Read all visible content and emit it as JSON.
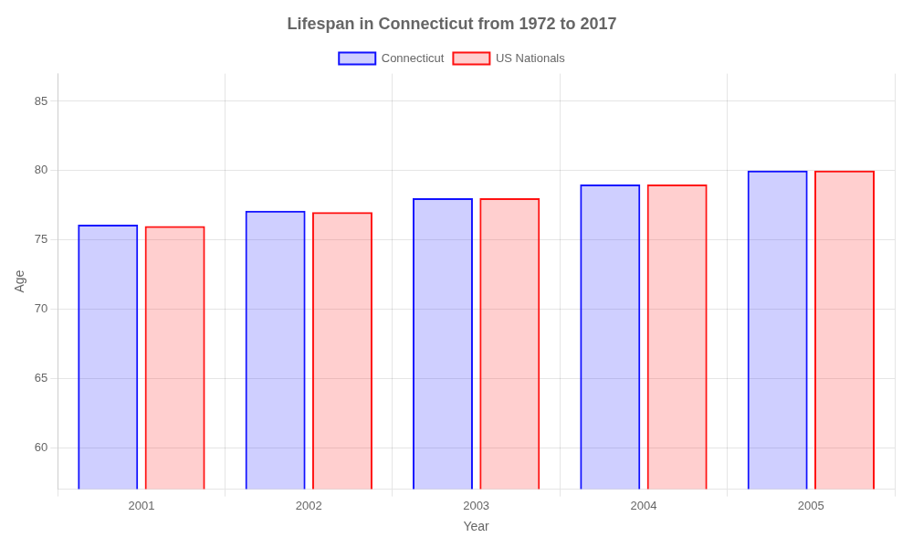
{
  "chart_data": {
    "type": "bar",
    "title": "Lifespan in Connecticut from 1972 to 2017",
    "x_label": "Year",
    "y_label": "Age",
    "categories": [
      2001,
      2002,
      2003,
      2004,
      2005
    ],
    "series": [
      {
        "name": "Connecticut",
        "color": "#1111ff",
        "values": [
          76.1,
          77.1,
          78.0,
          79.0,
          80.0
        ]
      },
      {
        "name": "US Nationals",
        "color": "#ff1111",
        "values": [
          76.0,
          77.0,
          78.0,
          79.0,
          80.0
        ]
      }
    ],
    "ylim": [
      57,
      87
    ],
    "yticks": [
      60,
      65,
      70,
      75,
      80,
      85
    ],
    "grid": true,
    "legend": "top"
  }
}
